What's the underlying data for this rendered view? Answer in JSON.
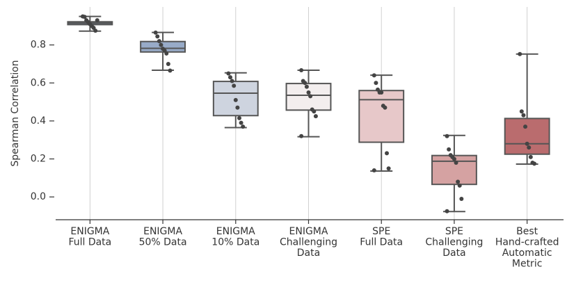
{
  "chart_data": {
    "type": "box",
    "ylabel": "Spearman Correlation",
    "categories": [
      [
        "ENIGMA",
        "Full Data"
      ],
      [
        "ENIGMA",
        "50% Data"
      ],
      [
        "ENIGMA",
        "10% Data"
      ],
      [
        "ENIGMA",
        "Challenging",
        "Data"
      ],
      [
        "SPE",
        "Full Data"
      ],
      [
        "SPE",
        "Challenging",
        "Data"
      ],
      [
        "Best",
        "Hand-crafted",
        "Automatic",
        "Metric"
      ]
    ],
    "boxes": [
      {
        "whislo": 0.873,
        "q1": 0.907,
        "med": 0.915,
        "q3": 0.922,
        "whishi": 0.95,
        "color": "#6f88aa",
        "points": [
          0.95,
          0.948,
          0.93,
          0.92,
          0.91,
          0.9,
          0.89,
          0.875,
          0.93
        ]
      },
      {
        "whislo": 0.667,
        "q1": 0.763,
        "med": 0.782,
        "q3": 0.818,
        "whishi": 0.866,
        "color": "#98abc8",
        "points": [
          0.865,
          0.845,
          0.82,
          0.8,
          0.78,
          0.77,
          0.755,
          0.7,
          0.665
        ]
      },
      {
        "whislo": 0.365,
        "q1": 0.428,
        "med": 0.546,
        "q3": 0.608,
        "whishi": 0.653,
        "color": "#ced4df",
        "points": [
          0.65,
          0.63,
          0.61,
          0.585,
          0.51,
          0.47,
          0.415,
          0.39,
          0.37
        ]
      },
      {
        "whislo": 0.317,
        "q1": 0.457,
        "med": 0.535,
        "q3": 0.597,
        "whishi": 0.667,
        "color": "#f3eeee",
        "points": [
          0.667,
          0.61,
          0.6,
          0.58,
          0.55,
          0.53,
          0.46,
          0.45,
          0.425,
          0.32
        ]
      },
      {
        "whislo": 0.136,
        "q1": 0.288,
        "med": 0.512,
        "q3": 0.56,
        "whishi": 0.641,
        "color": "#e7c8c9",
        "points": [
          0.64,
          0.6,
          0.565,
          0.55,
          0.55,
          0.48,
          0.47,
          0.23,
          0.15,
          0.14
        ]
      },
      {
        "whislo": -0.077,
        "q1": 0.066,
        "med": 0.188,
        "q3": 0.218,
        "whishi": 0.324,
        "color": "#d5a2a2",
        "points": [
          0.32,
          0.25,
          0.22,
          0.21,
          0.2,
          0.18,
          0.08,
          0.06,
          -0.01,
          -0.075
        ]
      },
      {
        "whislo": 0.173,
        "q1": 0.225,
        "med": 0.28,
        "q3": 0.413,
        "whishi": 0.752,
        "color": "#ba6c6e",
        "points": [
          0.752,
          0.45,
          0.43,
          0.37,
          0.28,
          0.26,
          0.21,
          0.18,
          0.175
        ]
      }
    ],
    "ylim": [
      -0.12,
      1.0
    ],
    "yticks": [
      {
        "value": 0,
        "label": "0.0"
      },
      0.2,
      0.4,
      0.6,
      0.8
    ],
    "grid": true
  }
}
